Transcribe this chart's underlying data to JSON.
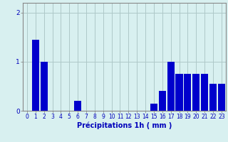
{
  "hours": [
    0,
    1,
    2,
    3,
    4,
    5,
    6,
    7,
    8,
    9,
    10,
    11,
    12,
    13,
    14,
    15,
    16,
    17,
    18,
    19,
    20,
    21,
    22,
    23
  ],
  "values": [
    0,
    1.45,
    1.0,
    0,
    0,
    0,
    0.2,
    0,
    0,
    0,
    0,
    0,
    0,
    0,
    0,
    0.15,
    0.4,
    1.0,
    0.75,
    0.75,
    0.75,
    0.75,
    0.55,
    0.55
  ],
  "bar_color": "#0000cc",
  "background_color": "#d8f0f0",
  "grid_color": "#aec8c8",
  "xlabel": "Précipitations 1h ( mm )",
  "xlabel_color": "#0000bb",
  "xlabel_fontsize": 7,
  "tick_color": "#0000bb",
  "tick_fontsize": 5.5,
  "ytick_fontsize": 6.5,
  "ylim": [
    0,
    2.2
  ],
  "yticks": [
    0,
    1,
    2
  ],
  "axis_color": "#888888"
}
